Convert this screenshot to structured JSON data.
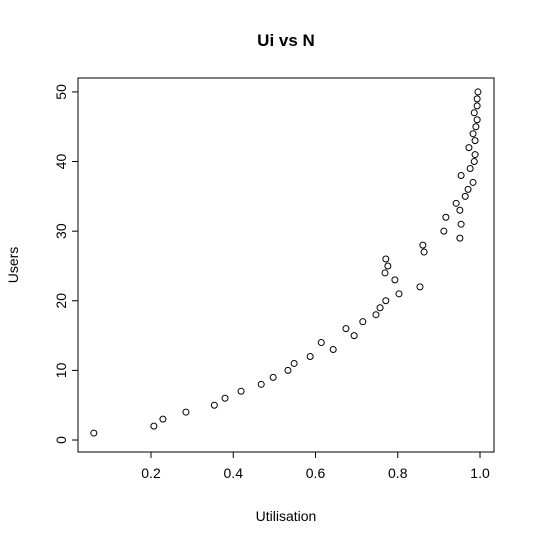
{
  "chart_data": {
    "type": "scatter",
    "title": "Ui vs N",
    "x_label": "Utilisation",
    "y_label": "Users",
    "x": [
      0.061,
      0.207,
      0.229,
      0.285,
      0.354,
      0.38,
      0.419,
      0.468,
      0.497,
      0.533,
      0.548,
      0.587,
      0.643,
      0.614,
      0.694,
      0.674,
      0.715,
      0.747,
      0.757,
      0.771,
      0.803,
      0.854,
      0.793,
      0.769,
      0.776,
      0.771,
      0.864,
      0.861,
      0.951,
      0.912,
      0.954,
      0.917,
      0.951,
      0.942,
      0.964,
      0.971,
      0.983,
      0.954,
      0.976,
      0.986,
      0.988,
      0.973,
      0.988,
      0.983,
      0.99,
      0.993,
      0.986,
      0.993,
      0.993,
      0.995
    ],
    "values": [
      1,
      2,
      3,
      4,
      5,
      6,
      7,
      8,
      9,
      10,
      11,
      12,
      13,
      14,
      15,
      16,
      17,
      18,
      19,
      20,
      21,
      22,
      23,
      24,
      25,
      26,
      27,
      28,
      29,
      30,
      31,
      32,
      33,
      34,
      35,
      36,
      37,
      38,
      39,
      40,
      41,
      42,
      43,
      44,
      45,
      46,
      47,
      48,
      49,
      50
    ],
    "color": "#000000",
    "xlim": [
      0.0225,
      1.034
    ],
    "ylim": [
      -1.72,
      52.0
    ],
    "xticks": [
      0.2,
      0.4,
      0.6,
      0.8,
      {
        "value": 1,
        "label": "1.0"
      }
    ],
    "yticks": [
      0,
      10,
      20,
      30,
      40,
      50
    ]
  }
}
